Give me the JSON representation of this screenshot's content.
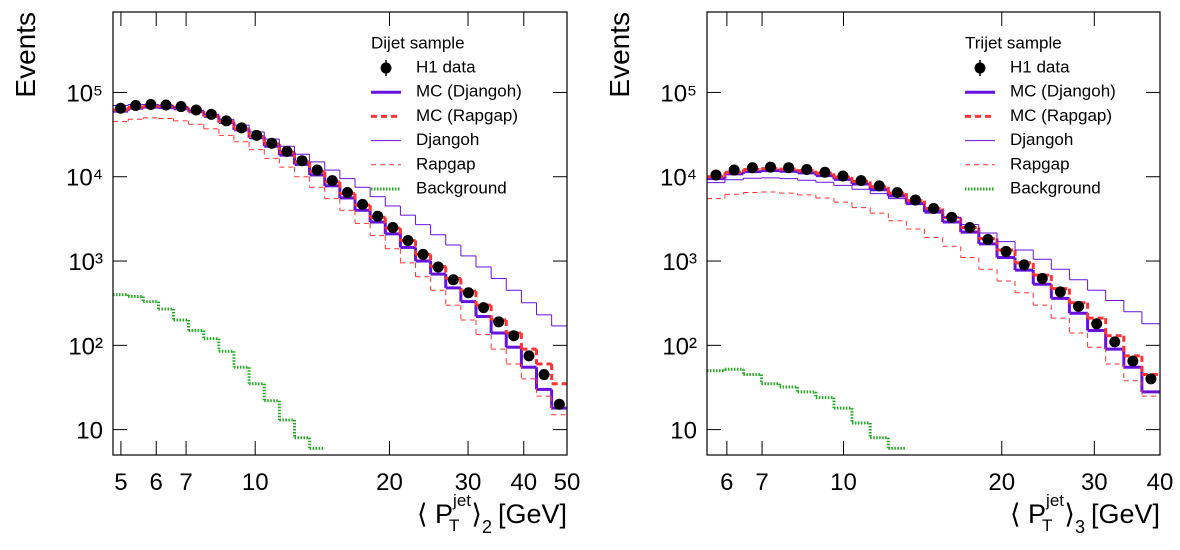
{
  "chart_data": [
    {
      "type": "histogram",
      "ylabel": "Events",
      "xlabel": {
        "main": "⟨ P",
        "sup": "jet",
        "sub": "T",
        "close": "⟩",
        "index": "2",
        "unit": "[GeV]"
      },
      "legend_title": "Dijet sample",
      "xscale": "log",
      "yscale": "log",
      "xlim": [
        4.8,
        50
      ],
      "ylim": [
        5,
        900000
      ],
      "xticks": [
        5,
        6,
        7,
        10,
        20,
        30,
        40,
        50
      ],
      "yticks": [
        10,
        {
          "value": 100,
          "label": "10²"
        },
        {
          "value": 1000,
          "label": "10³"
        },
        {
          "value": 10000,
          "label": "10⁴"
        },
        {
          "value": 100000,
          "label": "10⁵"
        }
      ],
      "bins": [
        4.8,
        5.19,
        5.61,
        6.07,
        6.56,
        7.09,
        7.67,
        8.29,
        8.96,
        9.69,
        10.48,
        11.33,
        12.25,
        13.24,
        14.32,
        15.48,
        16.74,
        18.1,
        19.57,
        21.16,
        22.88,
        24.73,
        26.74,
        28.91,
        31.26,
        33.8,
        36.54,
        39.51,
        42.72,
        46.19,
        50
      ],
      "series": [
        {
          "name": "H1 data",
          "color": "#000000",
          "style": "points",
          "values": [
            65000,
            70000,
            72000,
            71000,
            68000,
            62000,
            55000,
            46000,
            38000,
            31000,
            25000,
            20000,
            15500,
            12000,
            9000,
            6500,
            4700,
            3400,
            2500,
            1750,
            1200,
            850,
            600,
            420,
            280,
            190,
            130,
            75,
            45,
            20
          ]
        },
        {
          "name": "MC (Djangoh)",
          "color": "#6611dd",
          "style": "thick-solid",
          "values": [
            60000,
            65000,
            67000,
            66000,
            64000,
            59000,
            52000,
            44000,
            36000,
            29000,
            23000,
            18000,
            14000,
            10500,
            7800,
            5600,
            4000,
            2900,
            2100,
            1450,
            1000,
            700,
            480,
            330,
            220,
            140,
            95,
            55,
            30,
            18
          ]
        },
        {
          "name": "MC (Rapgap)",
          "color": "#ff3333",
          "style": "thick-dashed",
          "values": [
            62000,
            67000,
            69000,
            69000,
            66000,
            60000,
            53000,
            45000,
            37000,
            30000,
            24500,
            19500,
            15000,
            11500,
            8700,
            6300,
            4600,
            3300,
            2450,
            1750,
            1200,
            860,
            620,
            440,
            300,
            200,
            140,
            90,
            60,
            35
          ]
        },
        {
          "name": "Djangoh",
          "color": "#6611dd",
          "style": "thin-solid",
          "values": [
            70000,
            72000,
            72000,
            70000,
            66000,
            61000,
            55000,
            48000,
            41000,
            34000,
            28000,
            23000,
            18500,
            15000,
            12000,
            9500,
            7500,
            5800,
            4500,
            3500,
            2700,
            2050,
            1550,
            1150,
            850,
            620,
            450,
            320,
            230,
            170
          ]
        },
        {
          "name": "Rapgap",
          "color": "#ff3333",
          "style": "thin-dashed",
          "values": [
            45000,
            48000,
            50000,
            49000,
            46000,
            42000,
            37000,
            31000,
            26000,
            21000,
            16500,
            13000,
            10000,
            7500,
            5500,
            4000,
            2800,
            2000,
            1400,
            950,
            650,
            450,
            300,
            200,
            135,
            90,
            60,
            40,
            25,
            15
          ]
        },
        {
          "name": "Background",
          "color": "#22aa22",
          "style": "dotted",
          "values": [
            400,
            380,
            330,
            270,
            200,
            150,
            120,
            85,
            55,
            35,
            22,
            13,
            8,
            6,
            null,
            null,
            null,
            null,
            null,
            null,
            null,
            null,
            null,
            null,
            null,
            null,
            null,
            null,
            null,
            null
          ]
        }
      ]
    },
    {
      "type": "histogram",
      "ylabel": "Events",
      "xlabel": {
        "main": "⟨ P",
        "sup": "jet",
        "sub": "T",
        "close": "⟩",
        "index": "3",
        "unit": "[GeV]"
      },
      "legend_title": "Trijet sample",
      "xscale": "log",
      "yscale": "log",
      "xlim": [
        5.5,
        40
      ],
      "ylim": [
        5,
        900000
      ],
      "xticks": [
        6,
        7,
        10,
        20,
        30,
        40
      ],
      "yticks": [
        10,
        {
          "value": 100,
          "label": "10²"
        },
        {
          "value": 1000,
          "label": "10³"
        },
        {
          "value": 10000,
          "label": "10⁴"
        },
        {
          "value": 100000,
          "label": "10⁵"
        }
      ],
      "bins": [
        5.5,
        5.95,
        6.45,
        6.98,
        7.56,
        8.18,
        8.86,
        9.59,
        10.38,
        11.24,
        12.17,
        13.17,
        14.26,
        15.44,
        16.71,
        18.09,
        19.59,
        21.2,
        22.96,
        24.85,
        26.9,
        29.13,
        31.53,
        34.14,
        36.95,
        40
      ],
      "series": [
        {
          "name": "H1 data",
          "color": "#000000",
          "style": "points",
          "values": [
            10500,
            12000,
            12800,
            13000,
            12800,
            12200,
            11300,
            10200,
            9000,
            7800,
            6500,
            5300,
            4200,
            3300,
            2500,
            1800,
            1300,
            900,
            620,
            430,
            290,
            180,
            110,
            65,
            40
          ]
        },
        {
          "name": "MC (Djangoh)",
          "color": "#6611dd",
          "style": "thick-solid",
          "values": [
            9500,
            10800,
            11500,
            11800,
            11600,
            11100,
            10300,
            9300,
            8200,
            7000,
            5900,
            4800,
            3800,
            2900,
            2200,
            1600,
            1100,
            780,
            530,
            360,
            240,
            150,
            90,
            55,
            28
          ]
        },
        {
          "name": "MC (Rapgap)",
          "color": "#ff3333",
          "style": "thick-dashed",
          "values": [
            10000,
            11300,
            12200,
            12500,
            12300,
            11800,
            11000,
            9900,
            8800,
            7600,
            6400,
            5200,
            4200,
            3300,
            2500,
            1850,
            1350,
            950,
            680,
            470,
            320,
            210,
            130,
            75,
            45
          ]
        },
        {
          "name": "Djangoh",
          "color": "#6611dd",
          "style": "thin-solid",
          "values": [
            8500,
            9200,
            9600,
            9700,
            9500,
            9100,
            8600,
            7900,
            7100,
            6300,
            5500,
            4700,
            4000,
            3300,
            2700,
            2150,
            1700,
            1350,
            1050,
            800,
            600,
            450,
            340,
            250,
            180
          ]
        },
        {
          "name": "Rapgap",
          "color": "#ff3333",
          "style": "thin-dashed",
          "values": [
            5500,
            6200,
            6500,
            6600,
            6400,
            6100,
            5600,
            5000,
            4300,
            3700,
            3000,
            2400,
            1900,
            1500,
            1100,
            800,
            580,
            420,
            300,
            210,
            140,
            95,
            60,
            38,
            25
          ]
        },
        {
          "name": "Background",
          "color": "#22aa22",
          "style": "dotted",
          "values": [
            50,
            52,
            45,
            35,
            32,
            28,
            24,
            18,
            12,
            8,
            6,
            null,
            null,
            null,
            null,
            null,
            null,
            null,
            null,
            null,
            null,
            null,
            null,
            null,
            null
          ]
        }
      ]
    }
  ]
}
